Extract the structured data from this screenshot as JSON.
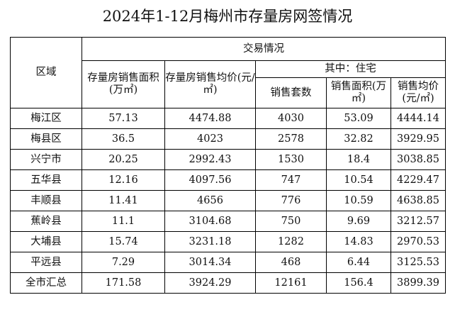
{
  "title": "2024年1-12月梅州市存量房网签情况",
  "header": {
    "region": "区域",
    "group": "交易情况",
    "resi_group": "其中：住宅",
    "area_total": "存量房销售面积(万㎡)",
    "price_total": "存量房销售均价(元/㎡)",
    "units": "销售套数",
    "resi_area": "销售面积(万㎡)",
    "resi_price": "销售均价(元/㎡)"
  },
  "rows": [
    {
      "region": "梅江区",
      "area": "57.13",
      "price": "4474.88",
      "units": "4030",
      "resi_area": "53.09",
      "resi_price": "4444.14"
    },
    {
      "region": "梅县区",
      "area": "36.5",
      "price": "4023",
      "units": "2578",
      "resi_area": "32.82",
      "resi_price": "3929.95"
    },
    {
      "region": "兴宁市",
      "area": "20.25",
      "price": "2992.43",
      "units": "1530",
      "resi_area": "18.4",
      "resi_price": "3038.85"
    },
    {
      "region": "五华县",
      "area": "12.16",
      "price": "4097.56",
      "units": "747",
      "resi_area": "10.54",
      "resi_price": "4229.47"
    },
    {
      "region": "丰顺县",
      "area": "11.41",
      "price": "4656",
      "units": "776",
      "resi_area": "10.59",
      "resi_price": "4638.85"
    },
    {
      "region": "蕉岭县",
      "area": "11.1",
      "price": "3104.68",
      "units": "750",
      "resi_area": "9.69",
      "resi_price": "3212.57"
    },
    {
      "region": "大埔县",
      "area": "15.74",
      "price": "3231.18",
      "units": "1282",
      "resi_area": "14.83",
      "resi_price": "2970.53"
    },
    {
      "region": "平远县",
      "area": "7.29",
      "price": "3014.34",
      "units": "468",
      "resi_area": "6.44",
      "resi_price": "3125.53"
    },
    {
      "region": "全市汇总",
      "area": "171.58",
      "price": "3924.29",
      "units": "12161",
      "resi_area": "156.4",
      "resi_price": "3899.39"
    }
  ]
}
